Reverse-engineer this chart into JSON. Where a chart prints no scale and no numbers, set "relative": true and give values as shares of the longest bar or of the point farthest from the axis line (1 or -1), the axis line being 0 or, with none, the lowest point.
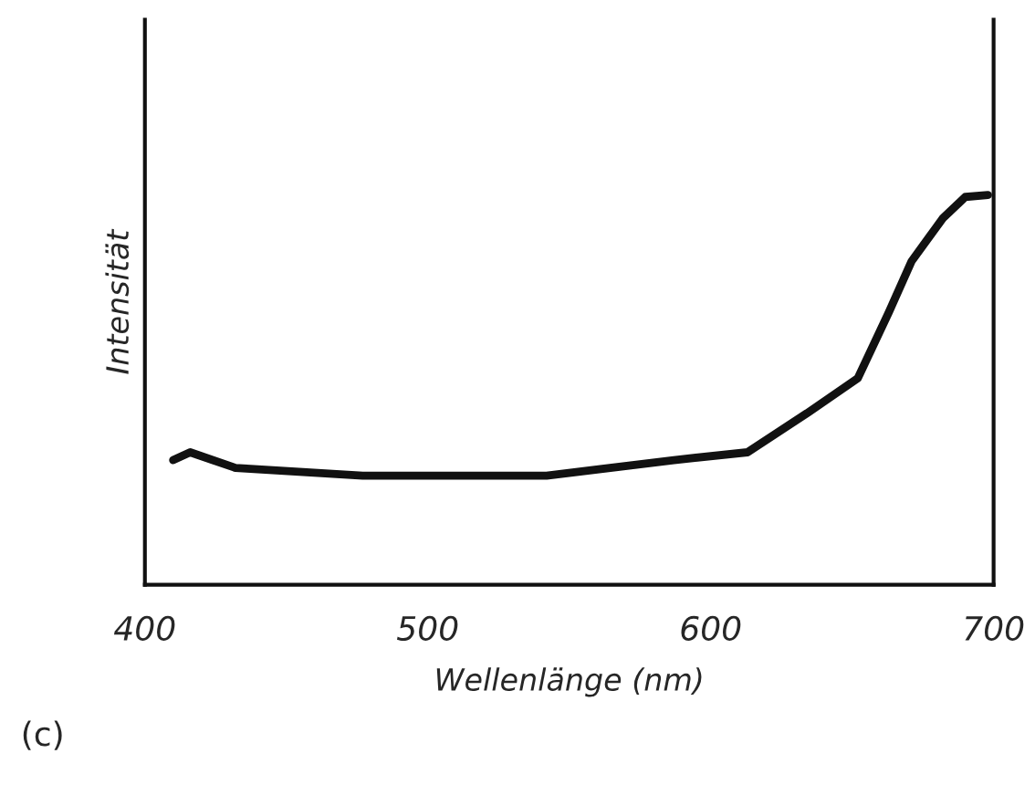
{
  "chart_data": {
    "type": "line",
    "relative": true,
    "xlabel": "Wellenlänge (nm)",
    "ylabel": "Intensität",
    "x": [
      410,
      416,
      432,
      477,
      542,
      587,
      613,
      634,
      652,
      663,
      671,
      682,
      690,
      698
    ],
    "series": [
      {
        "color": "#111111",
        "values": [
          0.32,
          0.34,
          0.3,
          0.28,
          0.28,
          0.32,
          0.34,
          0.44,
          0.53,
          0.7,
          0.83,
          0.94,
          0.995,
          1.0
        ]
      }
    ],
    "xlim": [
      400,
      700
    ],
    "xticks": [
      400,
      500,
      600,
      700
    ],
    "grid": false,
    "legend": false,
    "marker": "none",
    "line_style": "solid",
    "annotations": [
      "(c)"
    ]
  }
}
